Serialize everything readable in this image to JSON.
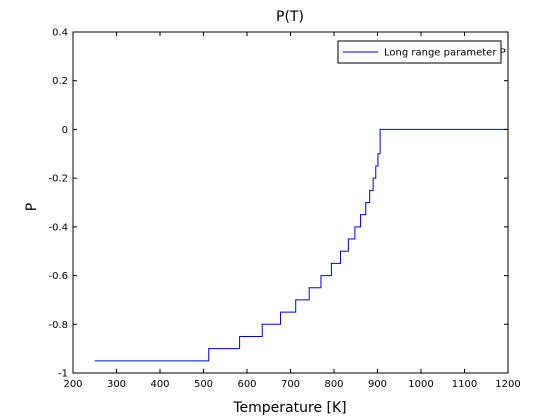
{
  "chart_data": {
    "type": "line",
    "title": "P(T)",
    "xlabel": "Temperature [K]",
    "ylabel": "P",
    "xlim": [
      200,
      1200
    ],
    "ylim": [
      -1,
      0.4
    ],
    "x_ticks": [
      200,
      300,
      400,
      500,
      600,
      700,
      800,
      900,
      1000,
      1100,
      1200
    ],
    "y_ticks": [
      -1,
      -0.8,
      -0.6,
      -0.4,
      -0.2,
      0,
      0.2,
      0.4
    ],
    "x_tick_labels": [
      "200",
      "300",
      "400",
      "500",
      "600",
      "700",
      "800",
      "900",
      "1000",
      "1100",
      "1200"
    ],
    "y_tick_labels": [
      "-1",
      "-0.8",
      "-0.6",
      "-0.4",
      "-0.2",
      "0",
      "0.2",
      "0.4"
    ],
    "grid": false,
    "legend_position": "top-right",
    "series_color": "#0000ff",
    "series": [
      {
        "name": "Long range parameter P",
        "x": [
          250,
          512,
          512,
          583,
          583,
          635,
          635,
          677,
          677,
          712,
          712,
          743,
          743,
          770,
          770,
          794,
          794,
          815,
          815,
          833,
          833,
          848,
          848,
          861,
          861,
          873,
          873,
          882,
          882,
          890,
          890,
          896,
          896,
          901,
          901,
          906,
          906,
          1200
        ],
        "y": [
          -0.95,
          -0.95,
          -0.9,
          -0.9,
          -0.85,
          -0.85,
          -0.8,
          -0.8,
          -0.75,
          -0.75,
          -0.7,
          -0.7,
          -0.65,
          -0.65,
          -0.6,
          -0.6,
          -0.55,
          -0.55,
          -0.5,
          -0.5,
          -0.45,
          -0.45,
          -0.4,
          -0.4,
          -0.35,
          -0.35,
          -0.3,
          -0.3,
          -0.25,
          -0.25,
          -0.2,
          -0.2,
          -0.15,
          -0.15,
          -0.1,
          -0.1,
          0,
          0
        ]
      }
    ]
  }
}
